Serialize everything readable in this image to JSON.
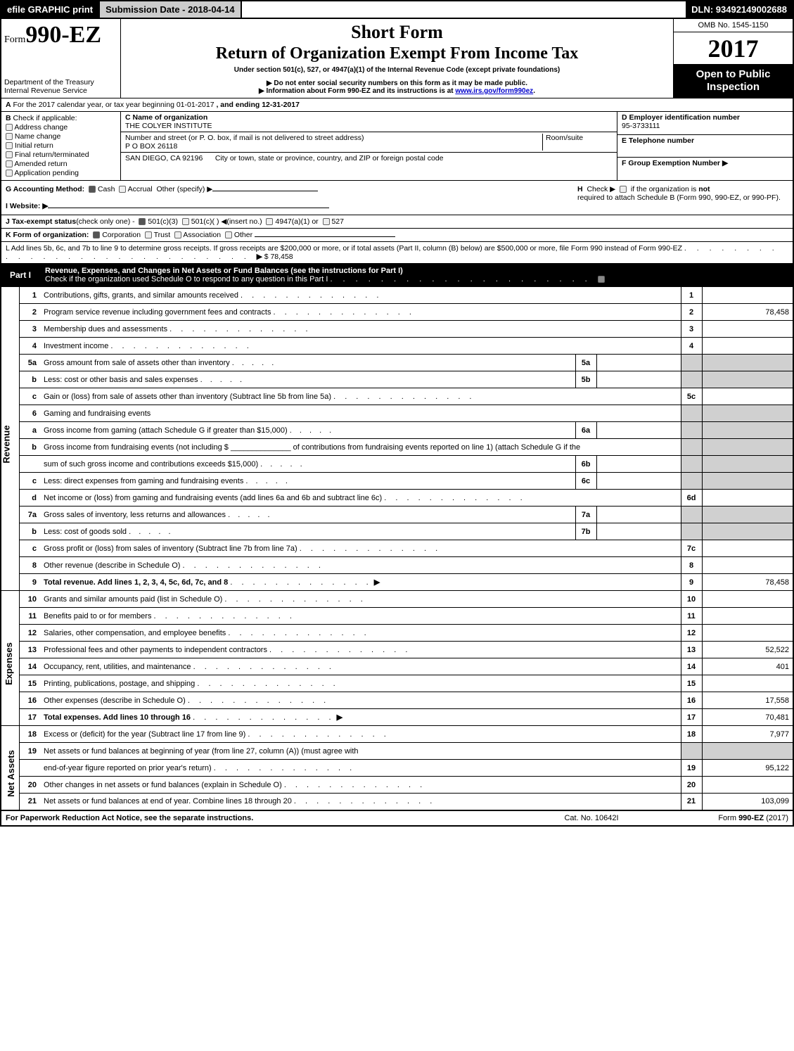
{
  "header": {
    "efile_btn": "efile GRAPHIC print",
    "submission": "Submission Date - 2018-04-14",
    "dln": "DLN: 93492149002688"
  },
  "titleblock": {
    "form_prefix": "Form",
    "form_num": "990-EZ",
    "dept1": "Department of the Treasury",
    "dept2": "Internal Revenue Service",
    "h1": "Short Form",
    "h2": "Return of Organization Exempt From Income Tax",
    "sub1": "Under section 501(c), 527, or 4947(a)(1) of the Internal Revenue Code (except private foundations)",
    "sub2a": "▶ Do not enter social security numbers on this form as it may be made public.",
    "sub2b": "▶ Information about Form 990-EZ and its instructions is at ",
    "sub2b_link": "www.irs.gov/form990ez",
    "omb": "OMB No. 1545-1150",
    "year": "2017",
    "open1": "Open to Public",
    "open2": "Inspection"
  },
  "rowA": {
    "label": "A",
    "text1": "For the 2017 calendar year, or tax year beginning 01-01-2017",
    "text2": ", and ending 12-31-2017"
  },
  "rowB": {
    "label": "B",
    "check_label": "Check if applicable:",
    "opts": [
      "Address change",
      "Name change",
      "Initial return",
      "Final return/terminated",
      "Amended return",
      "Application pending"
    ]
  },
  "rowC": {
    "c_label": "C Name of organization",
    "c_name": "THE COLYER INSTITUTE",
    "addr_label": "Number and street (or P. O. box, if mail is not delivered to street address)",
    "room_label": "Room/suite",
    "addr": "P O BOX 26118",
    "city_label": "City or town, state or province, country, and ZIP or foreign postal code",
    "city": "SAN DIEGO, CA  92196"
  },
  "rowD": {
    "d_label": "D Employer identification number",
    "d_val": "95-3733111",
    "e_label": "E Telephone number",
    "e_val": "",
    "f_label": "F Group Exemption Number",
    "f_arrow": "▶"
  },
  "rowG": {
    "g_label": "G Accounting Method:",
    "g_cash": "Cash",
    "g_accrual": "Accrual",
    "g_other": "Other (specify) ▶",
    "i_label": "I Website: ▶",
    "h_label": "H",
    "h_text1": "Check ▶",
    "h_text2": "if the organization is ",
    "h_not": "not",
    "h_text3": "required to attach Schedule B (Form 990, 990-EZ, or 990-PF)."
  },
  "rowJ": {
    "label": "J Tax-exempt status",
    "note": "(check only one) -",
    "opts": [
      "501(c)(3)",
      "501(c)(  ) ◀(insert no.)",
      "4947(a)(1) or",
      "527"
    ]
  },
  "rowK": {
    "label": "K Form of organization:",
    "opts": [
      "Corporation",
      "Trust",
      "Association",
      "Other"
    ]
  },
  "rowL": {
    "text1": "L Add lines 5b, 6c, and 7b to line 9 to determine gross receipts. If gross receipts are $200,000 or more, or if total assets (Part II, column (B) below) are $500,000 or more, file Form 990 instead of Form 990-EZ",
    "arrow": "▶",
    "amount": "$ 78,458"
  },
  "partI": {
    "label": "Part I",
    "title": "Revenue, Expenses, and Changes in Net Assets or Fund Balances (see the instructions for Part I)",
    "check_line": "Check if the organization used Schedule O to respond to any question in this Part I"
  },
  "sections": {
    "revenue": "Revenue",
    "expenses": "Expenses",
    "netassets": "Net Assets"
  },
  "lines": [
    {
      "n": "1",
      "d": "Contributions, gifts, grants, and similar amounts received",
      "r": "1",
      "a": ""
    },
    {
      "n": "2",
      "d": "Program service revenue including government fees and contracts",
      "r": "2",
      "a": "78,458"
    },
    {
      "n": "3",
      "d": "Membership dues and assessments",
      "r": "3",
      "a": ""
    },
    {
      "n": "4",
      "d": "Investment income",
      "r": "4",
      "a": ""
    },
    {
      "n": "5a",
      "d": "Gross amount from sale of assets other than inventory",
      "s": "5a",
      "sa": "",
      "shade": true
    },
    {
      "n": "b",
      "d": "Less: cost or other basis and sales expenses",
      "s": "5b",
      "sa": "",
      "shade": true
    },
    {
      "n": "c",
      "d": "Gain or (loss) from sale of assets other than inventory (Subtract line 5b from line 5a)",
      "r": "5c",
      "a": ""
    },
    {
      "n": "6",
      "d": "Gaming and fundraising events",
      "shade": true,
      "noright": true
    },
    {
      "n": "a",
      "d": "Gross income from gaming (attach Schedule G if greater than $15,000)",
      "s": "6a",
      "sa": "",
      "shade": true
    },
    {
      "n": "b",
      "d": "Gross income from fundraising events (not including $ ______________ of contributions from fundraising events reported on line 1) (attach Schedule G if the",
      "shade": true,
      "noright": true
    },
    {
      "n": "",
      "d": "sum of such gross income and contributions exceeds $15,000)",
      "s": "6b",
      "sa": "",
      "shade": true
    },
    {
      "n": "c",
      "d": "Less: direct expenses from gaming and fundraising events",
      "s": "6c",
      "sa": "",
      "shade": true
    },
    {
      "n": "d",
      "d": "Net income or (loss) from gaming and fundraising events (add lines 6a and 6b and subtract line 6c)",
      "r": "6d",
      "a": ""
    },
    {
      "n": "7a",
      "d": "Gross sales of inventory, less returns and allowances",
      "s": "7a",
      "sa": "",
      "shade": true
    },
    {
      "n": "b",
      "d": "Less: cost of goods sold",
      "s": "7b",
      "sa": "",
      "shade": true
    },
    {
      "n": "c",
      "d": "Gross profit or (loss) from sales of inventory (Subtract line 7b from line 7a)",
      "r": "7c",
      "a": ""
    },
    {
      "n": "8",
      "d": "Other revenue (describe in Schedule O)",
      "r": "8",
      "a": ""
    },
    {
      "n": "9",
      "d": "Total revenue. Add lines 1, 2, 3, 4, 5c, 6d, 7c, and 8",
      "r": "9",
      "a": "78,458",
      "bold": true,
      "arrow": true
    }
  ],
  "expense_lines": [
    {
      "n": "10",
      "d": "Grants and similar amounts paid (list in Schedule O)",
      "r": "10",
      "a": ""
    },
    {
      "n": "11",
      "d": "Benefits paid to or for members",
      "r": "11",
      "a": ""
    },
    {
      "n": "12",
      "d": "Salaries, other compensation, and employee benefits",
      "r": "12",
      "a": ""
    },
    {
      "n": "13",
      "d": "Professional fees and other payments to independent contractors",
      "r": "13",
      "a": "52,522"
    },
    {
      "n": "14",
      "d": "Occupancy, rent, utilities, and maintenance",
      "r": "14",
      "a": "401"
    },
    {
      "n": "15",
      "d": "Printing, publications, postage, and shipping",
      "r": "15",
      "a": ""
    },
    {
      "n": "16",
      "d": "Other expenses (describe in Schedule O)",
      "r": "16",
      "a": "17,558"
    },
    {
      "n": "17",
      "d": "Total expenses. Add lines 10 through 16",
      "r": "17",
      "a": "70,481",
      "bold": true,
      "arrow": true
    }
  ],
  "net_lines": [
    {
      "n": "18",
      "d": "Excess or (deficit) for the year (Subtract line 17 from line 9)",
      "r": "18",
      "a": "7,977"
    },
    {
      "n": "19",
      "d": "Net assets or fund balances at beginning of year (from line 27, column (A)) (must agree with",
      "shade": true,
      "noright": true
    },
    {
      "n": "",
      "d": "end-of-year figure reported on prior year's return)",
      "r": "19",
      "a": "95,122"
    },
    {
      "n": "20",
      "d": "Other changes in net assets or fund balances (explain in Schedule O)",
      "r": "20",
      "a": ""
    },
    {
      "n": "21",
      "d": "Net assets or fund balances at end of year. Combine lines 18 through 20",
      "r": "21",
      "a": "103,099"
    }
  ],
  "footer": {
    "left": "For Paperwork Reduction Act Notice, see the separate instructions.",
    "mid": "Cat. No. 10642I",
    "right_pre": "Form ",
    "right_bold": "990-EZ",
    "right_suf": " (2017)"
  },
  "colors": {
    "black": "#000000",
    "white": "#ffffff",
    "shade": "#d0d0d0",
    "link": "#0000cc"
  }
}
